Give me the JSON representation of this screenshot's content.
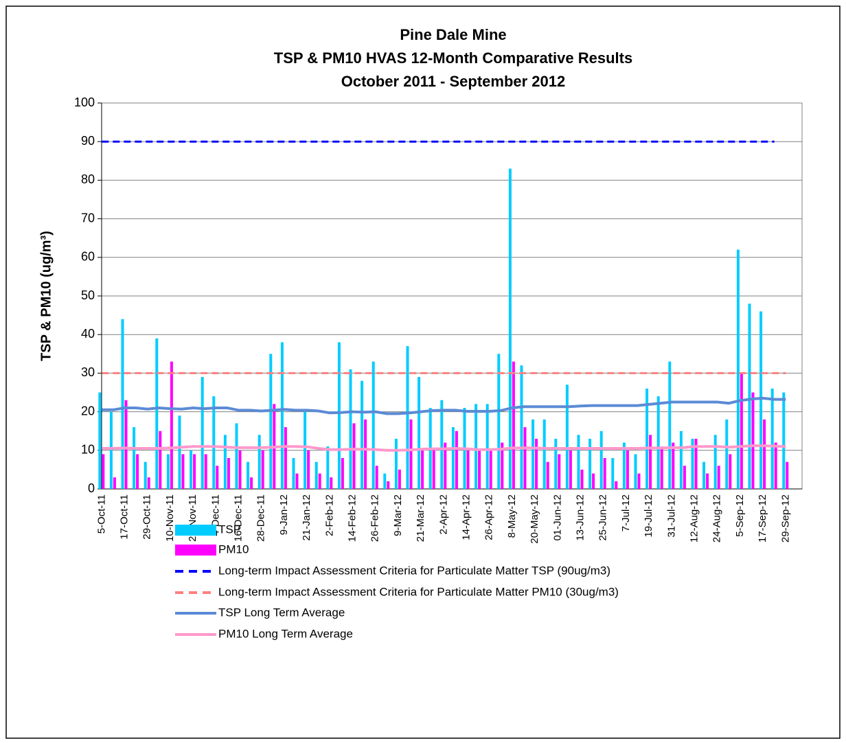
{
  "chart_data": {
    "type": "bar",
    "title": [
      "Pine Dale Mine",
      "TSP & PM10 HVAS 12-Month Comparative Results",
      "October 2011 - September 2012"
    ],
    "y_label": "TSP & PM10 (ug/m³)",
    "categories": [
      "5-Oct-11",
      null,
      "17-Oct-11",
      null,
      "29-Oct-11",
      null,
      "10-Nov-11",
      null,
      "22-Nov-11",
      null,
      "4-Dec-11",
      null,
      "16-Dec-11",
      null,
      "28-Dec-11",
      null,
      "9-Jan-12",
      null,
      "21-Jan-12",
      null,
      "2-Feb-12",
      null,
      "14-Feb-12",
      null,
      "26-Feb-12",
      null,
      "9-Mar-12",
      null,
      "21-Mar-12",
      null,
      "2-Apr-12",
      null,
      "14-Apr-12",
      null,
      "26-Apr-12",
      null,
      "8-May-12",
      null,
      "20-May-12",
      null,
      "01-Jun-12",
      null,
      "13-Jun-12",
      null,
      "25-Jun-12",
      null,
      "7-Jul-12",
      null,
      "19-Jul-12",
      null,
      "31-Jul-12",
      null,
      "12-Aug-12",
      null,
      "24-Aug-12",
      null,
      "5-Sep-12",
      null,
      "17-Sep-12",
      null,
      "29-Sep-12"
    ],
    "series": [
      {
        "name": "TSP",
        "type": "bar",
        "color": "#00ccff",
        "values": [
          25,
          20,
          44,
          16,
          7,
          39,
          9,
          19,
          10,
          29,
          24,
          14,
          17,
          7,
          14,
          35,
          38,
          8,
          20,
          7,
          11,
          38,
          31,
          28,
          33,
          4,
          13,
          37,
          29,
          21,
          23,
          16,
          21,
          22,
          22,
          35,
          83,
          32,
          18,
          18,
          13,
          27,
          14,
          13,
          15,
          8,
          12,
          9,
          26,
          24,
          33,
          15,
          13,
          7,
          14,
          18,
          62,
          48,
          46,
          26,
          25
        ]
      },
      {
        "name": "PM10",
        "type": "bar",
        "color": "#ff00ff",
        "values": [
          9,
          3,
          23,
          9,
          3,
          15,
          33,
          9,
          9,
          9,
          6,
          8,
          10,
          3,
          10,
          22,
          16,
          4,
          10,
          4,
          3,
          8,
          17,
          18,
          6,
          2,
          5,
          18,
          10,
          10,
          12,
          15,
          10,
          10,
          10,
          12,
          33,
          16,
          13,
          7,
          9,
          10,
          5,
          4,
          8,
          2,
          10,
          4,
          14,
          11,
          12,
          6,
          13,
          4,
          6,
          9,
          30,
          25,
          18,
          12,
          7
        ]
      },
      {
        "name": "Long-term Impact Assessment Criteria for Particulate Matter TSP (90ug/m3)",
        "type": "line",
        "dashed": true,
        "color": "#0000ff",
        "values": [
          90,
          90,
          90,
          90,
          90,
          90,
          90,
          90,
          90,
          90,
          90,
          90,
          90,
          90,
          90,
          90,
          90,
          90,
          90,
          90,
          90,
          90,
          90,
          90,
          90,
          90,
          90,
          90,
          90,
          90,
          90,
          90,
          90,
          90,
          90,
          90,
          90,
          90,
          90,
          90,
          90,
          90,
          90,
          90,
          90,
          90,
          90,
          90,
          90,
          90,
          90,
          90,
          90,
          90,
          90,
          90,
          90,
          90,
          90,
          90,
          null
        ]
      },
      {
        "name": "Long-term Impact Assessment Criteria for Particulate Matter PM10 (30ug/m3)",
        "type": "line",
        "dashed": true,
        "color": "#ff8080",
        "values": [
          30,
          30,
          30,
          30,
          30,
          30,
          30,
          30,
          30,
          30,
          30,
          30,
          30,
          30,
          30,
          30,
          30,
          30,
          30,
          30,
          30,
          30,
          30,
          30,
          30,
          30,
          30,
          30,
          30,
          30,
          30,
          30,
          30,
          30,
          30,
          30,
          30,
          30,
          30,
          30,
          30,
          30,
          30,
          30,
          30,
          30,
          30,
          30,
          30,
          30,
          30,
          30,
          30,
          30,
          30,
          30,
          30,
          30,
          30,
          30,
          30
        ]
      },
      {
        "name": "TSP Long Term Average",
        "type": "line",
        "color": "#5b8bd6",
        "values": [
          20.5,
          20.5,
          21,
          21,
          20.7,
          21,
          20.8,
          20.7,
          21,
          20.8,
          21,
          21,
          20.4,
          20.4,
          20.2,
          20.4,
          20.6,
          20.4,
          20.4,
          20.2,
          19.7,
          19.8,
          20,
          19.9,
          20,
          19.5,
          19.5,
          19.7,
          20,
          20.3,
          20.4,
          20.4,
          20.1,
          20.1,
          20.1,
          20.3,
          21,
          21.3,
          21.3,
          21.3,
          21.3,
          21.3,
          21.5,
          21.6,
          21.6,
          21.6,
          21.6,
          21.6,
          21.9,
          22.2,
          22.5,
          22.5,
          22.5,
          22.5,
          22.5,
          22.2,
          22.9,
          23.3,
          23.5,
          23.2,
          23.2
        ]
      },
      {
        "name": "PM10 Long Term Average",
        "type": "line",
        "color": "#ff99cc",
        "values": [
          10.5,
          10.5,
          10.6,
          10.5,
          10.5,
          10.5,
          10.6,
          10.8,
          11,
          11,
          11,
          10.8,
          10.7,
          10.7,
          10.7,
          10.8,
          11,
          11,
          10.9,
          10.5,
          10.2,
          10.2,
          10.3,
          10.3,
          10.2,
          10,
          10,
          10.1,
          10.3,
          10.4,
          10.4,
          10.5,
          10.4,
          10.2,
          10.2,
          10.3,
          10.6,
          10.6,
          10.6,
          10.5,
          10.5,
          10.5,
          10.5,
          10.5,
          10.5,
          10.5,
          10.5,
          10.5,
          10.6,
          10.6,
          10.7,
          10.7,
          11,
          11,
          11,
          10.8,
          11,
          11.2,
          11.2,
          11.1,
          11
        ]
      }
    ],
    "ylim": [
      0,
      100
    ],
    "yticks": [
      0,
      10,
      20,
      30,
      40,
      50,
      60,
      70,
      80,
      90,
      100
    ],
    "grid": true
  }
}
